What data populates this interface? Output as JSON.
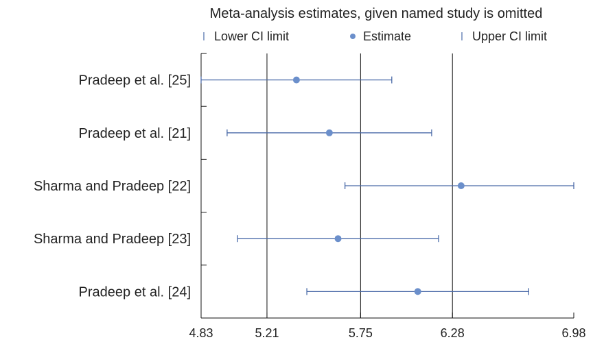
{
  "chart_data": {
    "type": "scatter",
    "title": "Meta-analysis estimates, given named study is omitted",
    "legend": {
      "position": "top",
      "items": [
        {
          "label": "Lower CI limit",
          "marker": "tick"
        },
        {
          "label": "Estimate",
          "marker": "dot"
        },
        {
          "label": "Upper CI limit",
          "marker": "tick"
        }
      ]
    },
    "xlim": [
      4.83,
      6.98
    ],
    "xticks": [
      "4.83",
      "5.21",
      "5.75",
      "6.28",
      "6.98"
    ],
    "reference_lines": [
      5.21,
      5.75,
      6.28
    ],
    "studies": [
      {
        "name": "Pradeep et al. [25]",
        "lower": 4.83,
        "estimate": 5.38,
        "upper": 5.93
      },
      {
        "name": "Pradeep et al. [21]",
        "lower": 4.98,
        "estimate": 5.57,
        "upper": 6.16
      },
      {
        "name": "Sharma and Pradeep [22]",
        "lower": 5.66,
        "estimate": 6.33,
        "upper": 6.98
      },
      {
        "name": "Sharma and Pradeep [23]",
        "lower": 5.04,
        "estimate": 5.62,
        "upper": 6.2
      },
      {
        "name": "Pradeep et al. [24]",
        "lower": 5.44,
        "estimate": 6.08,
        "upper": 6.72
      }
    ],
    "colors": {
      "series": "#4a6aa8",
      "marker": "#6b8fcb",
      "text": "#222222",
      "axis": "#111111"
    }
  }
}
